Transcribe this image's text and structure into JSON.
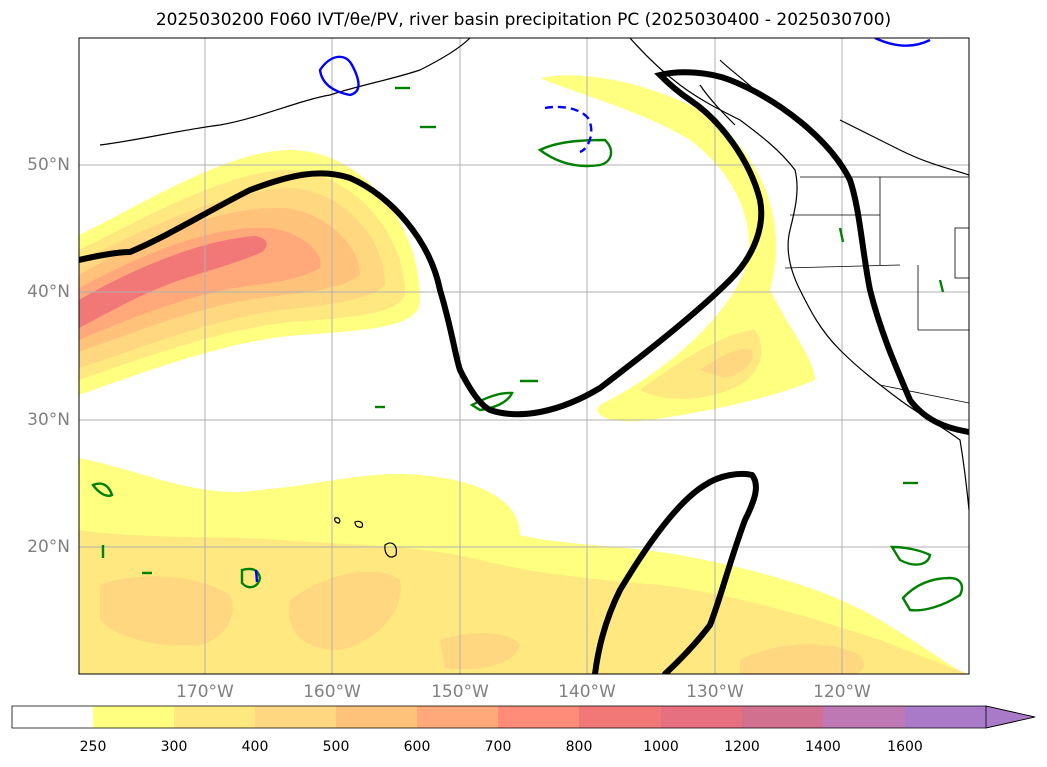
{
  "title": "2025030200 F060 IVT/θe/PV, river basin precipitation PC (2025030400 - 2025030700)",
  "lat_labels": [
    "50°N",
    "40°N",
    "30°N",
    "20°N"
  ],
  "lon_labels": [
    "170°W",
    "160°W",
    "150°W",
    "140°W",
    "130°W",
    "120°W"
  ],
  "colorbar": {
    "labels": [
      "250",
      "300",
      "400",
      "500",
      "600",
      "700",
      "800",
      "1000",
      "1200",
      "1400",
      "1600"
    ],
    "colors": [
      "#ffffff",
      "#ffff80",
      "#ffe880",
      "#ffd780",
      "#ffc27a",
      "#ffa87a",
      "#ff8c78",
      "#f27878",
      "#e67080",
      "#d27090",
      "#be78b4",
      "#a87ac8"
    ],
    "extend": "max"
  },
  "colors": {
    "ivt_light": "#ffff80",
    "ivt_mid": "#ffe880",
    "ivt_high": "#ffc27a",
    "ivt_core": "#f27878",
    "theta_e_contour": "#000000",
    "pv_green": "#008000",
    "pv_blue": "#0000ff",
    "grid": "#b0b0b0",
    "coast": "#000000"
  }
}
